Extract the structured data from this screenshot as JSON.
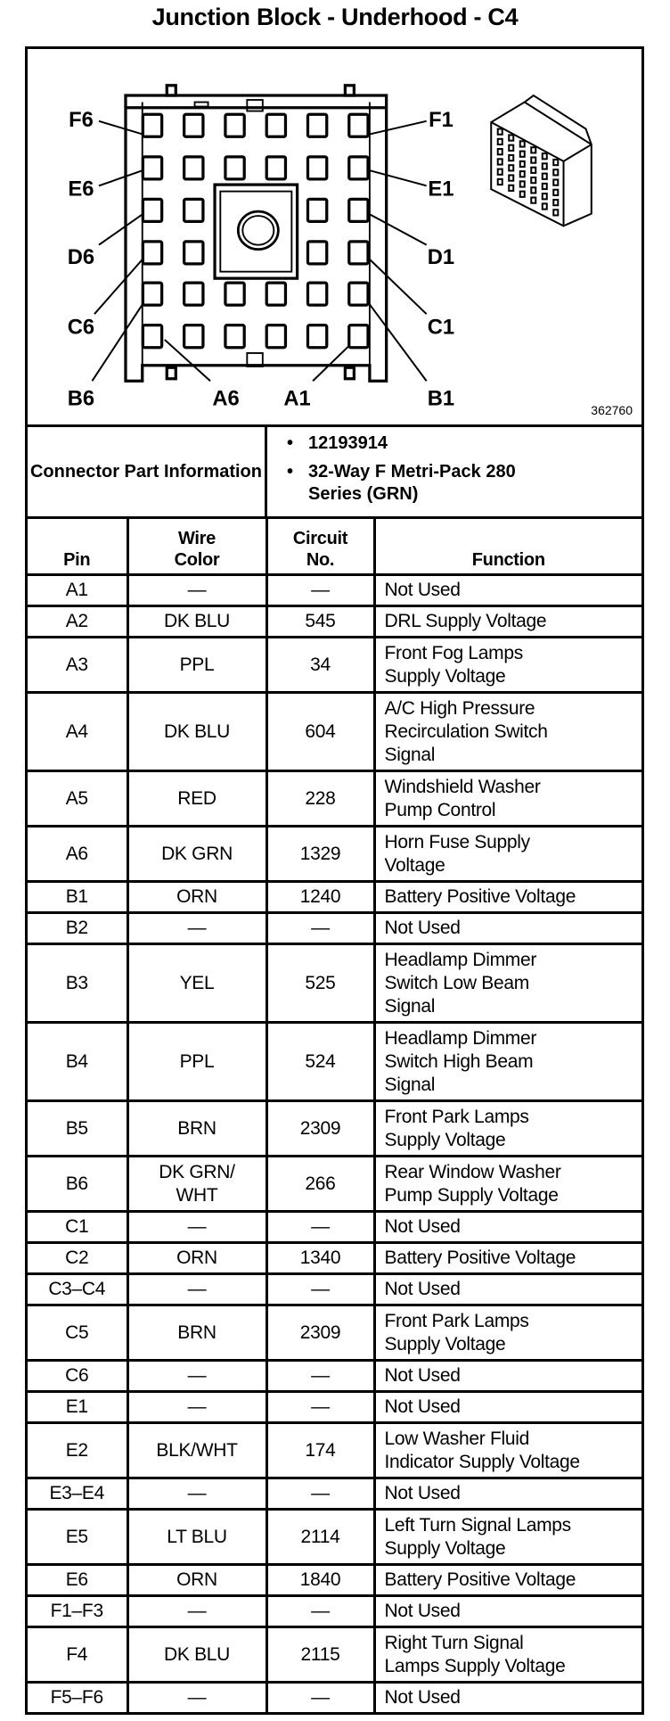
{
  "title": "Junction Block - Underhood - C4",
  "diagram": {
    "labels": [
      "F6",
      "E6",
      "D6",
      "C6",
      "B6",
      "A6",
      "A1",
      "B1",
      "C1",
      "D1",
      "E1",
      "F1"
    ],
    "part_number": "362760",
    "icons": [
      "connector-face-view",
      "connector-isometric-view"
    ]
  },
  "connector_info": {
    "label": "Connector Part Information",
    "items": [
      "12193914",
      "32-Way F Metri-Pack 280 Series (GRN)"
    ],
    "bullet": "•"
  },
  "table": {
    "headers": {
      "pin": "Pin",
      "wire": "Wire Color",
      "circuit": "Circuit No.",
      "function": "Function"
    },
    "rows": [
      {
        "pin": "A1",
        "wire": "—",
        "circuit": "—",
        "function": [
          "Not Used"
        ]
      },
      {
        "pin": "A2",
        "wire": "DK BLU",
        "circuit": "545",
        "function": [
          "DRL Supply Voltage"
        ]
      },
      {
        "pin": "A3",
        "wire": "PPL",
        "circuit": "34",
        "function": [
          "Front Fog Lamps",
          "Supply Voltage"
        ]
      },
      {
        "pin": "A4",
        "wire": "DK BLU",
        "circuit": "604",
        "function": [
          "A/C High Pressure",
          "Recirculation Switch",
          "Signal"
        ]
      },
      {
        "pin": "A5",
        "wire": "RED",
        "circuit": "228",
        "function": [
          "Windshield Washer",
          "Pump Control"
        ]
      },
      {
        "pin": "A6",
        "wire": "DK GRN",
        "circuit": "1329",
        "function": [
          "Horn Fuse Supply",
          "Voltage"
        ]
      },
      {
        "pin": "B1",
        "wire": "ORN",
        "circuit": "1240",
        "function": [
          "Battery Positive Voltage"
        ]
      },
      {
        "pin": "B2",
        "wire": "—",
        "circuit": "—",
        "function": [
          "Not Used"
        ]
      },
      {
        "pin": "B3",
        "wire": "YEL",
        "circuit": "525",
        "function": [
          "Headlamp Dimmer",
          "Switch Low Beam",
          "Signal"
        ]
      },
      {
        "pin": "B4",
        "wire": "PPL",
        "circuit": "524",
        "function": [
          "Headlamp Dimmer",
          "Switch High Beam",
          "Signal"
        ]
      },
      {
        "pin": "B5",
        "wire": "BRN",
        "circuit": "2309",
        "function": [
          "Front Park Lamps",
          "Supply Voltage"
        ]
      },
      {
        "pin": "B6",
        "wire": "DK GRN/ WHT",
        "circuit": "266",
        "function": [
          "Rear Window Washer",
          "Pump Supply Voltage"
        ]
      },
      {
        "pin": "C1",
        "wire": "—",
        "circuit": "—",
        "function": [
          "Not Used"
        ]
      },
      {
        "pin": "C2",
        "wire": "ORN",
        "circuit": "1340",
        "function": [
          "Battery Positive Voltage"
        ]
      },
      {
        "pin": "C3–C4",
        "wire": "—",
        "circuit": "—",
        "function": [
          "Not Used"
        ]
      },
      {
        "pin": "C5",
        "wire": "BRN",
        "circuit": "2309",
        "function": [
          "Front Park Lamps",
          "Supply Voltage"
        ]
      },
      {
        "pin": "C6",
        "wire": "—",
        "circuit": "—",
        "function": [
          "Not Used"
        ]
      },
      {
        "pin": "E1",
        "wire": "—",
        "circuit": "—",
        "function": [
          "Not Used"
        ]
      },
      {
        "pin": "E2",
        "wire": "BLK/WHT",
        "circuit": "174",
        "function": [
          "Low Washer Fluid",
          "Indicator Supply Voltage"
        ]
      },
      {
        "pin": "E3–E4",
        "wire": "—",
        "circuit": "—",
        "function": [
          "Not Used"
        ]
      },
      {
        "pin": "E5",
        "wire": "LT BLU",
        "circuit": "2114",
        "function": [
          "Left Turn Signal Lamps",
          "Supply Voltage"
        ]
      },
      {
        "pin": "E6",
        "wire": "ORN",
        "circuit": "1840",
        "function": [
          "Battery Positive Voltage"
        ]
      },
      {
        "pin": "F1–F3",
        "wire": "—",
        "circuit": "—",
        "function": [
          "Not Used"
        ]
      },
      {
        "pin": "F4",
        "wire": "DK BLU",
        "circuit": "2115",
        "function": [
          "Right Turn Signal",
          "Lamps Supply Voltage"
        ]
      },
      {
        "pin": "F5–F6",
        "wire": "—",
        "circuit": "—",
        "function": [
          "Not Used"
        ]
      }
    ]
  }
}
